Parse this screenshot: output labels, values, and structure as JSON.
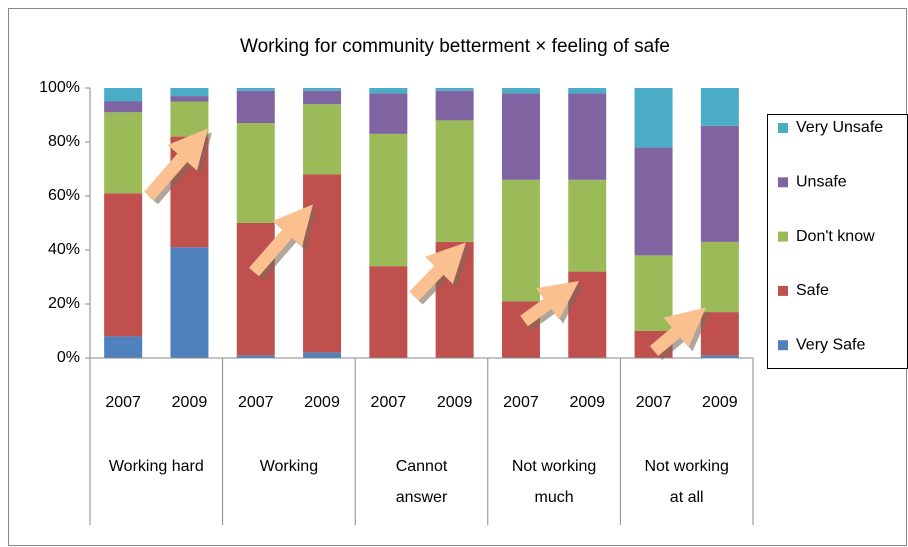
{
  "chart_data": {
    "type": "stacked_bar",
    "title": "Working for community betterment × feeling of safe",
    "categories": [
      "2007",
      "2009",
      "2007",
      "2009",
      "2007",
      "2009",
      "2007",
      "2009",
      "2007",
      "2009"
    ],
    "group_labels": [
      [
        "Working hard"
      ],
      [
        "Working"
      ],
      [
        "Cannot",
        "answer"
      ],
      [
        "Not working",
        "much"
      ],
      [
        "Not working",
        "at all"
      ]
    ],
    "series": [
      {
        "name": "Very Safe",
        "color": "#4f81bd",
        "values": [
          8,
          41,
          1,
          2,
          0,
          0,
          0,
          0,
          0,
          1
        ]
      },
      {
        "name": "Safe",
        "color": "#c0504d",
        "values": [
          53,
          41,
          49,
          66,
          34,
          43,
          21,
          32,
          10,
          16
        ]
      },
      {
        "name": "Don't know",
        "color": "#9bbb59",
        "values": [
          30,
          13,
          37,
          26,
          49,
          45,
          45,
          34,
          28,
          26
        ]
      },
      {
        "name": "Unsafe",
        "color": "#8064a2",
        "values": [
          4,
          2,
          12,
          5,
          15,
          11,
          32,
          32,
          40,
          43
        ]
      },
      {
        "name": "Very Unsafe",
        "color": "#4bacc6",
        "values": [
          5,
          3,
          1,
          1,
          2,
          1,
          2,
          2,
          22,
          14
        ]
      }
    ],
    "ylim": [
      0,
      100
    ],
    "yticks": [
      {
        "value": 0,
        "label": "0%"
      },
      {
        "value": 20,
        "label": "20%"
      },
      {
        "value": 40,
        "label": "40%"
      },
      {
        "value": 60,
        "label": "60%"
      },
      {
        "value": 80,
        "label": "80%"
      },
      {
        "value": 100,
        "label": "100%"
      }
    ],
    "grid": false,
    "legend": "right"
  }
}
